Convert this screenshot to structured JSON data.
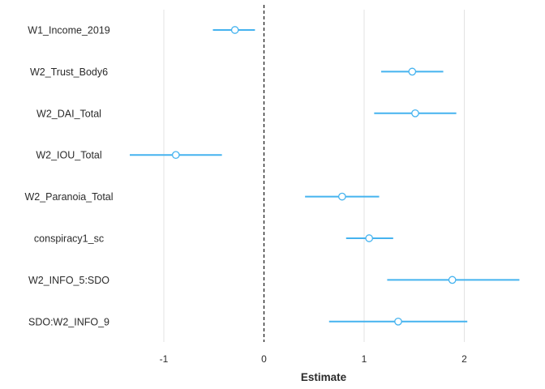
{
  "chart_data": {
    "type": "scatter",
    "subtype": "coefficient-plot",
    "title": "",
    "xlabel": "Estimate",
    "ylabel": "",
    "xlim": [
      -1.7,
      2.55
    ],
    "x_ticks": [
      -1,
      0,
      1,
      2
    ],
    "x_tick_labels": [
      "-1",
      "0",
      "1",
      "2"
    ],
    "grid": "vertical",
    "reference_line": {
      "x": 0,
      "style": "dashed"
    },
    "color": "#45B3EF",
    "series": [
      {
        "terms": [
          "W1_Income_2019",
          "W2_Trust_Body6",
          "W2_DAI_Total",
          "W2_IOU_Total",
          "W2_Paranoia_Total",
          "conspiracy1_sc",
          "W2_INFO_5:SDO",
          "SDO:W2_INFO_9"
        ],
        "estimate": [
          -0.29,
          1.48,
          1.51,
          -0.88,
          0.78,
          1.05,
          1.88,
          1.34
        ],
        "conf_low": [
          -0.51,
          1.17,
          1.1,
          -1.34,
          0.41,
          0.82,
          1.23,
          0.65
        ],
        "conf_high": [
          -0.09,
          1.79,
          1.92,
          -0.42,
          1.15,
          1.29,
          2.55,
          2.03
        ]
      }
    ]
  }
}
